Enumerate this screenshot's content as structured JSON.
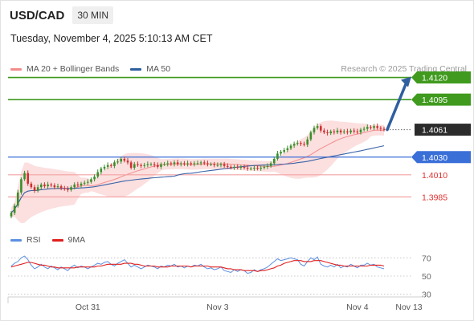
{
  "header": {
    "symbol": "USD/CAD",
    "timeframe": "30 MIN"
  },
  "datetime": "Tuesday, November 4, 2025 5:10:13 AM CET",
  "credit": "Research © 2025 Trading Central",
  "legend_main": [
    {
      "label": "MA 20 + Bollinger Bands",
      "color": "#f28c8c"
    },
    {
      "label": "MA 50",
      "color": "#2f5f9e"
    }
  ],
  "legend_rsi": [
    {
      "label": "RSI",
      "color": "#5b8fe0"
    },
    {
      "label": "9MA",
      "color": "#e01e1e"
    }
  ],
  "colors": {
    "target": "#3f9a1e",
    "pivot": "#3a6fd8",
    "support": "#f4a3a3",
    "support_text": "#e03030",
    "arrow": "#2f5f9e",
    "bb_fill": "#fcd9d9",
    "candle_up": "#3a8f2a",
    "candle_down": "#d03030",
    "current_box": "#2b2b2b"
  },
  "chart_data": [
    {
      "type": "candlestick",
      "title": "USD/CAD",
      "subtitle": "30 MIN",
      "xlabel": "",
      "ylabel": "",
      "ylim": [
        1.394,
        1.4135
      ],
      "x_ticks": [
        {
          "label": "Oct 31",
          "idx": 23
        },
        {
          "label": "Nov 3",
          "idx": 62
        },
        {
          "label": "Nov 4",
          "idx": 104
        },
        {
          "label": "Nov 13",
          "idx": 120
        }
      ],
      "levels": [
        {
          "value": 1.412,
          "label": "1.4120",
          "kind": "target"
        },
        {
          "value": 1.4095,
          "label": "1.4095",
          "kind": "target"
        },
        {
          "value": 1.4061,
          "label": "1.4061",
          "kind": "current"
        },
        {
          "value": 1.403,
          "label": "1.4030",
          "kind": "pivot"
        },
        {
          "value": 1.401,
          "label": "1.4010",
          "kind": "support"
        },
        {
          "value": 1.3985,
          "label": "1.3985",
          "kind": "support"
        }
      ],
      "forecast_arrow": {
        "from": 1.4061,
        "to": 1.412
      },
      "close": [
        1.3967,
        1.3975,
        1.399,
        1.4005,
        1.4012,
        1.4,
        1.3996,
        1.3992,
        1.3996,
        1.3999,
        1.3997,
        1.3999,
        1.3998,
        1.3996,
        1.3997,
        1.3995,
        1.3994,
        1.3993,
        1.3996,
        1.3999,
        1.3998,
        1.4,
        1.4001,
        1.4002,
        1.4005,
        1.4008,
        1.4013,
        1.4017,
        1.4019,
        1.4021,
        1.402,
        1.4024,
        1.4025,
        1.4028,
        1.4026,
        1.4024,
        1.4018,
        1.4022,
        1.4021,
        1.402,
        1.4021,
        1.4022,
        1.4022,
        1.4021,
        1.4019,
        1.4022,
        1.4022,
        1.4023,
        1.4022,
        1.4024,
        1.4022,
        1.4023,
        1.4022,
        1.4023,
        1.4022,
        1.4023,
        1.4023,
        1.4024,
        1.4023,
        1.4022,
        1.4022,
        1.4021,
        1.4021,
        1.4022,
        1.402,
        1.4019,
        1.4018,
        1.4019,
        1.4018,
        1.4019,
        1.4018,
        1.4017,
        1.4017,
        1.4018,
        1.4017,
        1.4018,
        1.4019,
        1.402,
        1.4023,
        1.4028,
        1.4034,
        1.4036,
        1.4038,
        1.404,
        1.4043,
        1.4045,
        1.4046,
        1.4045,
        1.4044,
        1.405,
        1.4058,
        1.4063,
        1.4065,
        1.406,
        1.4058,
        1.4057,
        1.4059,
        1.4058,
        1.406,
        1.4058,
        1.4059,
        1.4058,
        1.406,
        1.4059,
        1.4058,
        1.4061,
        1.4062,
        1.4064,
        1.4063,
        1.4065,
        1.4063,
        1.4062,
        1.4061
      ]
    },
    {
      "type": "line",
      "title": "RSI",
      "ylim": [
        20,
        80
      ],
      "y_ticks": [
        70,
        50,
        30
      ],
      "series": [
        {
          "name": "RSI",
          "values": [
            61,
            64,
            66,
            70,
            72,
            68,
            62,
            58,
            60,
            63,
            60,
            58,
            61,
            59,
            57,
            60,
            58,
            56,
            60,
            62,
            59,
            61,
            60,
            58,
            60,
            62,
            64,
            63,
            65,
            66,
            63,
            61,
            64,
            66,
            68,
            64,
            60,
            62,
            60,
            58,
            60,
            62,
            61,
            60,
            58,
            61,
            60,
            62,
            61,
            63,
            60,
            61,
            59,
            61,
            60,
            62,
            61,
            63,
            60,
            58,
            59,
            57,
            58,
            60,
            56,
            55,
            54,
            57,
            55,
            57,
            56,
            53,
            54,
            57,
            55,
            57,
            58,
            60,
            63,
            66,
            69,
            67,
            68,
            69,
            70,
            69,
            68,
            63,
            61,
            66,
            70,
            68,
            71,
            63,
            61,
            60,
            62,
            60,
            63,
            59,
            61,
            60,
            63,
            61,
            59,
            62,
            62,
            64,
            62,
            63,
            60,
            59,
            58
          ]
        },
        {
          "name": "9MA",
          "values": [
            60,
            61,
            62,
            63,
            64,
            65,
            65,
            64,
            63,
            62,
            62,
            61,
            60,
            60,
            59,
            59,
            59,
            59,
            59,
            59,
            60,
            60,
            60,
            60,
            60,
            60,
            61,
            61,
            62,
            63,
            63,
            63,
            63,
            63,
            64,
            64,
            64,
            63,
            63,
            62,
            61,
            61,
            61,
            61,
            60,
            60,
            60,
            60,
            61,
            61,
            61,
            61,
            61,
            61,
            60,
            61,
            61,
            61,
            61,
            61,
            60,
            60,
            60,
            60,
            59,
            58,
            58,
            57,
            57,
            57,
            56,
            56,
            56,
            56,
            55,
            56,
            56,
            57,
            58,
            59,
            61,
            62,
            64,
            65,
            66,
            67,
            67,
            67,
            66,
            66,
            66,
            67,
            67,
            67,
            66,
            65,
            64,
            63,
            62,
            62,
            61,
            61,
            61,
            61,
            61,
            61,
            61,
            61,
            62,
            62,
            62,
            62,
            61
          ]
        }
      ]
    }
  ]
}
